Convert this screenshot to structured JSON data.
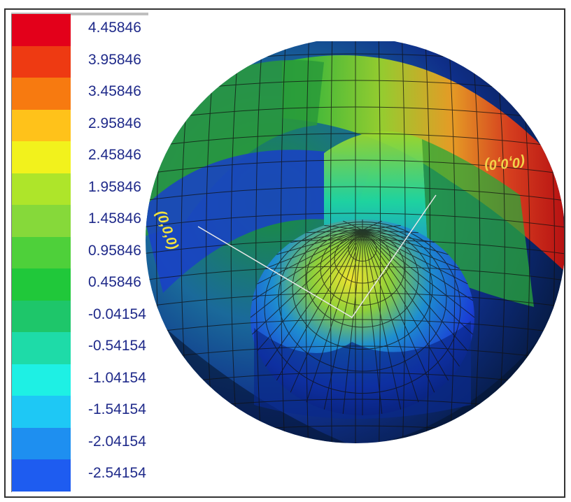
{
  "legend": {
    "items": [
      {
        "label": "4.45846",
        "color": "#e3001a"
      },
      {
        "label": "3.95846",
        "color": "#ee3a12"
      },
      {
        "label": "3.45846",
        "color": "#f77a10"
      },
      {
        "label": "2.95846",
        "color": "#ffc21a"
      },
      {
        "label": "2.45846",
        "color": "#f2f21c"
      },
      {
        "label": "1.95846",
        "color": "#aee52a"
      },
      {
        "label": "1.45846",
        "color": "#86d93a"
      },
      {
        "label": "0.95846",
        "color": "#4ed03a"
      },
      {
        "label": "0.45846",
        "color": "#20c83a"
      },
      {
        "label": "-0.04154",
        "color": "#1ec66a"
      },
      {
        "label": "-0.54154",
        "color": "#1edba8"
      },
      {
        "label": "-1.04154",
        "color": "#1ef0e4"
      },
      {
        "label": "-1.54154",
        "color": "#1ec8f5"
      },
      {
        "label": "-2.04154",
        "color": "#1e8ff0"
      },
      {
        "label": "-2.54154",
        "color": "#1e5cf0"
      }
    ]
  },
  "plot": {
    "annotation_left": "(0,0,0)",
    "annotation_right": "(0,0,0)"
  },
  "colors": {
    "annotation": "#f2e23c",
    "wire": "#111111"
  }
}
